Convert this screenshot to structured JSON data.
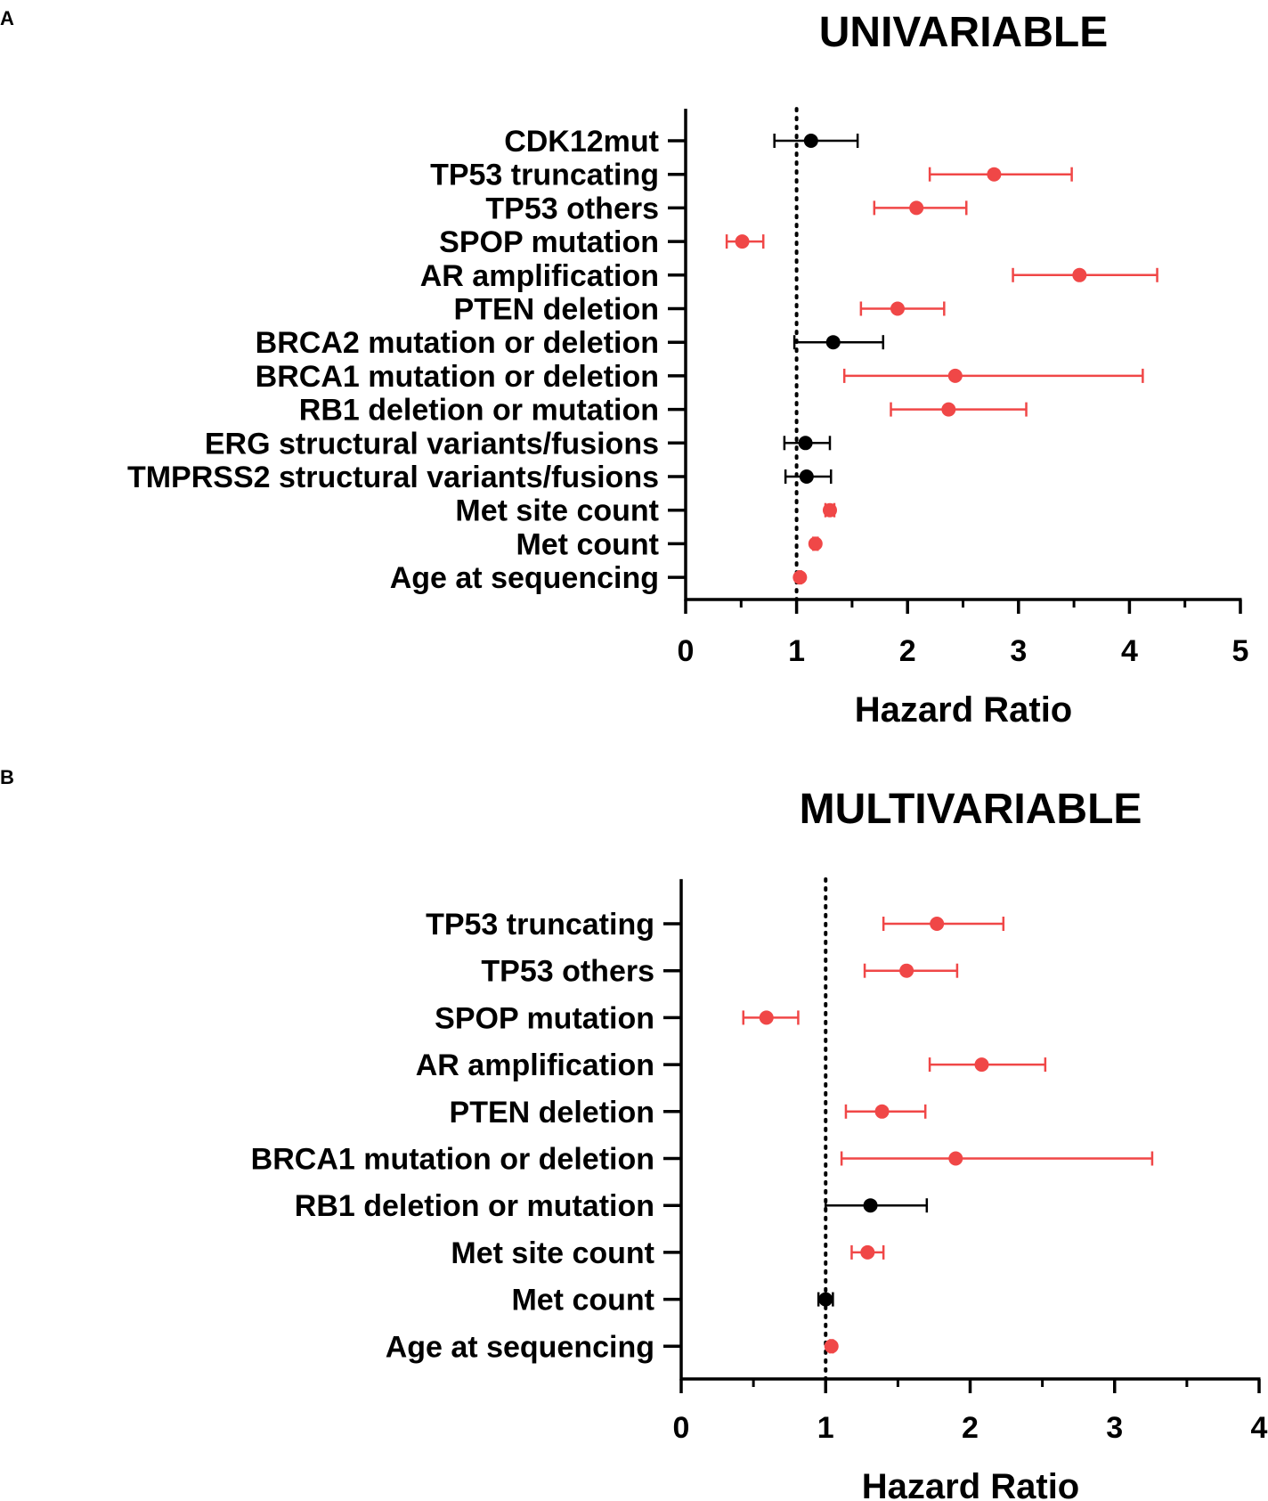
{
  "colors": {
    "significant": "#f04747",
    "nonsignificant": "#000000",
    "axis": "#000000"
  },
  "chart_data": [
    {
      "type": "forest",
      "panel": "A",
      "title": "UNIVARIABLE",
      "xlabel": "Hazard Ratio",
      "xlim": [
        0,
        5
      ],
      "xticks": [
        0,
        1,
        2,
        3,
        4,
        5
      ],
      "reference_line": 1,
      "rows": [
        {
          "label": "CDK12mut",
          "hr": 1.13,
          "lo": 0.8,
          "hi": 1.55,
          "significant": false
        },
        {
          "label": "TP53 truncating",
          "hr": 2.78,
          "lo": 2.2,
          "hi": 3.48,
          "significant": true
        },
        {
          "label": "TP53 others",
          "hr": 2.08,
          "lo": 1.7,
          "hi": 2.53,
          "significant": true
        },
        {
          "label": "SPOP mutation",
          "hr": 0.51,
          "lo": 0.37,
          "hi": 0.7,
          "significant": true
        },
        {
          "label": "AR amplification",
          "hr": 3.55,
          "lo": 2.95,
          "hi": 4.25,
          "significant": true
        },
        {
          "label": "PTEN deletion",
          "hr": 1.91,
          "lo": 1.58,
          "hi": 2.33,
          "significant": true
        },
        {
          "label": "BRCA2 mutation or deletion",
          "hr": 1.33,
          "lo": 0.98,
          "hi": 1.78,
          "significant": false
        },
        {
          "label": "BRCA1 mutation or deletion",
          "hr": 2.43,
          "lo": 1.43,
          "hi": 4.12,
          "significant": true
        },
        {
          "label": "RB1 deletion or mutation",
          "hr": 2.37,
          "lo": 1.85,
          "hi": 3.07,
          "significant": true
        },
        {
          "label": "ERG structural variants/fusions",
          "hr": 1.08,
          "lo": 0.89,
          "hi": 1.3,
          "significant": false
        },
        {
          "label": "TMPRSS2 structural variants/fusions",
          "hr": 1.09,
          "lo": 0.9,
          "hi": 1.31,
          "significant": false
        },
        {
          "label": "Met site count",
          "hr": 1.3,
          "lo": 1.26,
          "hi": 1.34,
          "significant": true
        },
        {
          "label": "Met count",
          "hr": 1.17,
          "lo": 1.15,
          "hi": 1.19,
          "significant": true
        },
        {
          "label": "Age at sequencing",
          "hr": 1.03,
          "lo": 1.02,
          "hi": 1.04,
          "significant": true
        }
      ]
    },
    {
      "type": "forest",
      "panel": "B",
      "title": "MULTIVARIABLE",
      "xlabel": "Hazard Ratio",
      "xlim": [
        0,
        4
      ],
      "xticks": [
        0,
        1,
        2,
        3,
        4
      ],
      "reference_line": 1,
      "rows": [
        {
          "label": "TP53 truncating",
          "hr": 1.77,
          "lo": 1.4,
          "hi": 2.23,
          "significant": true
        },
        {
          "label": "TP53 others",
          "hr": 1.56,
          "lo": 1.27,
          "hi": 1.91,
          "significant": true
        },
        {
          "label": "SPOP mutation",
          "hr": 0.59,
          "lo": 0.43,
          "hi": 0.81,
          "significant": true
        },
        {
          "label": "AR amplification",
          "hr": 2.08,
          "lo": 1.72,
          "hi": 2.52,
          "significant": true
        },
        {
          "label": "PTEN deletion",
          "hr": 1.39,
          "lo": 1.14,
          "hi": 1.69,
          "significant": true
        },
        {
          "label": "BRCA1 mutation or deletion",
          "hr": 1.9,
          "lo": 1.11,
          "hi": 3.26,
          "significant": true
        },
        {
          "label": "RB1 deletion or mutation",
          "hr": 1.31,
          "lo": 1.0,
          "hi": 1.7,
          "significant": false
        },
        {
          "label": "Met site count",
          "hr": 1.29,
          "lo": 1.18,
          "hi": 1.4,
          "significant": true
        },
        {
          "label": "Met count",
          "hr": 1.0,
          "lo": 0.95,
          "hi": 1.05,
          "significant": false
        },
        {
          "label": "Age at sequencing",
          "hr": 1.04,
          "lo": 1.03,
          "hi": 1.05,
          "significant": true
        }
      ]
    }
  ]
}
